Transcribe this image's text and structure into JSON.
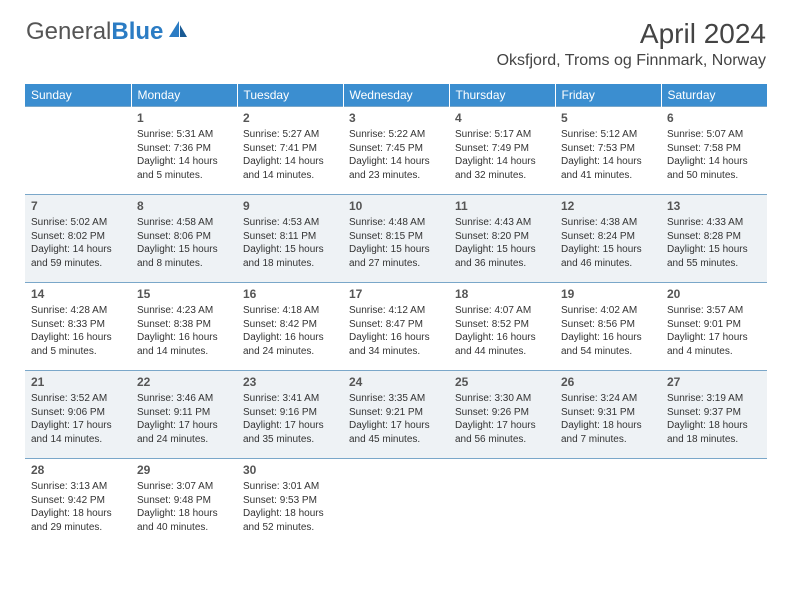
{
  "logo": {
    "word1": "General",
    "word2": "Blue"
  },
  "title": "April 2024",
  "location": "Oksfjord, Troms og Finnmark, Norway",
  "colors": {
    "header_bg": "#3b8ed0",
    "header_text": "#ffffff",
    "border": "#7aa7c9",
    "alt_row_bg": "#eef2f5",
    "text": "#333333",
    "logo_gray": "#555555",
    "logo_blue": "#2b7cc4"
  },
  "days_of_week": [
    "Sunday",
    "Monday",
    "Tuesday",
    "Wednesday",
    "Thursday",
    "Friday",
    "Saturday"
  ],
  "weeks": [
    {
      "alt": false,
      "cells": [
        null,
        {
          "n": "1",
          "sr": "Sunrise: 5:31 AM",
          "ss": "Sunset: 7:36 PM",
          "d1": "Daylight: 14 hours",
          "d2": "and 5 minutes."
        },
        {
          "n": "2",
          "sr": "Sunrise: 5:27 AM",
          "ss": "Sunset: 7:41 PM",
          "d1": "Daylight: 14 hours",
          "d2": "and 14 minutes."
        },
        {
          "n": "3",
          "sr": "Sunrise: 5:22 AM",
          "ss": "Sunset: 7:45 PM",
          "d1": "Daylight: 14 hours",
          "d2": "and 23 minutes."
        },
        {
          "n": "4",
          "sr": "Sunrise: 5:17 AM",
          "ss": "Sunset: 7:49 PM",
          "d1": "Daylight: 14 hours",
          "d2": "and 32 minutes."
        },
        {
          "n": "5",
          "sr": "Sunrise: 5:12 AM",
          "ss": "Sunset: 7:53 PM",
          "d1": "Daylight: 14 hours",
          "d2": "and 41 minutes."
        },
        {
          "n": "6",
          "sr": "Sunrise: 5:07 AM",
          "ss": "Sunset: 7:58 PM",
          "d1": "Daylight: 14 hours",
          "d2": "and 50 minutes."
        }
      ]
    },
    {
      "alt": true,
      "cells": [
        {
          "n": "7",
          "sr": "Sunrise: 5:02 AM",
          "ss": "Sunset: 8:02 PM",
          "d1": "Daylight: 14 hours",
          "d2": "and 59 minutes."
        },
        {
          "n": "8",
          "sr": "Sunrise: 4:58 AM",
          "ss": "Sunset: 8:06 PM",
          "d1": "Daylight: 15 hours",
          "d2": "and 8 minutes."
        },
        {
          "n": "9",
          "sr": "Sunrise: 4:53 AM",
          "ss": "Sunset: 8:11 PM",
          "d1": "Daylight: 15 hours",
          "d2": "and 18 minutes."
        },
        {
          "n": "10",
          "sr": "Sunrise: 4:48 AM",
          "ss": "Sunset: 8:15 PM",
          "d1": "Daylight: 15 hours",
          "d2": "and 27 minutes."
        },
        {
          "n": "11",
          "sr": "Sunrise: 4:43 AM",
          "ss": "Sunset: 8:20 PM",
          "d1": "Daylight: 15 hours",
          "d2": "and 36 minutes."
        },
        {
          "n": "12",
          "sr": "Sunrise: 4:38 AM",
          "ss": "Sunset: 8:24 PM",
          "d1": "Daylight: 15 hours",
          "d2": "and 46 minutes."
        },
        {
          "n": "13",
          "sr": "Sunrise: 4:33 AM",
          "ss": "Sunset: 8:28 PM",
          "d1": "Daylight: 15 hours",
          "d2": "and 55 minutes."
        }
      ]
    },
    {
      "alt": false,
      "cells": [
        {
          "n": "14",
          "sr": "Sunrise: 4:28 AM",
          "ss": "Sunset: 8:33 PM",
          "d1": "Daylight: 16 hours",
          "d2": "and 5 minutes."
        },
        {
          "n": "15",
          "sr": "Sunrise: 4:23 AM",
          "ss": "Sunset: 8:38 PM",
          "d1": "Daylight: 16 hours",
          "d2": "and 14 minutes."
        },
        {
          "n": "16",
          "sr": "Sunrise: 4:18 AM",
          "ss": "Sunset: 8:42 PM",
          "d1": "Daylight: 16 hours",
          "d2": "and 24 minutes."
        },
        {
          "n": "17",
          "sr": "Sunrise: 4:12 AM",
          "ss": "Sunset: 8:47 PM",
          "d1": "Daylight: 16 hours",
          "d2": "and 34 minutes."
        },
        {
          "n": "18",
          "sr": "Sunrise: 4:07 AM",
          "ss": "Sunset: 8:52 PM",
          "d1": "Daylight: 16 hours",
          "d2": "and 44 minutes."
        },
        {
          "n": "19",
          "sr": "Sunrise: 4:02 AM",
          "ss": "Sunset: 8:56 PM",
          "d1": "Daylight: 16 hours",
          "d2": "and 54 minutes."
        },
        {
          "n": "20",
          "sr": "Sunrise: 3:57 AM",
          "ss": "Sunset: 9:01 PM",
          "d1": "Daylight: 17 hours",
          "d2": "and 4 minutes."
        }
      ]
    },
    {
      "alt": true,
      "cells": [
        {
          "n": "21",
          "sr": "Sunrise: 3:52 AM",
          "ss": "Sunset: 9:06 PM",
          "d1": "Daylight: 17 hours",
          "d2": "and 14 minutes."
        },
        {
          "n": "22",
          "sr": "Sunrise: 3:46 AM",
          "ss": "Sunset: 9:11 PM",
          "d1": "Daylight: 17 hours",
          "d2": "and 24 minutes."
        },
        {
          "n": "23",
          "sr": "Sunrise: 3:41 AM",
          "ss": "Sunset: 9:16 PM",
          "d1": "Daylight: 17 hours",
          "d2": "and 35 minutes."
        },
        {
          "n": "24",
          "sr": "Sunrise: 3:35 AM",
          "ss": "Sunset: 9:21 PM",
          "d1": "Daylight: 17 hours",
          "d2": "and 45 minutes."
        },
        {
          "n": "25",
          "sr": "Sunrise: 3:30 AM",
          "ss": "Sunset: 9:26 PM",
          "d1": "Daylight: 17 hours",
          "d2": "and 56 minutes."
        },
        {
          "n": "26",
          "sr": "Sunrise: 3:24 AM",
          "ss": "Sunset: 9:31 PM",
          "d1": "Daylight: 18 hours",
          "d2": "and 7 minutes."
        },
        {
          "n": "27",
          "sr": "Sunrise: 3:19 AM",
          "ss": "Sunset: 9:37 PM",
          "d1": "Daylight: 18 hours",
          "d2": "and 18 minutes."
        }
      ]
    },
    {
      "alt": false,
      "cells": [
        {
          "n": "28",
          "sr": "Sunrise: 3:13 AM",
          "ss": "Sunset: 9:42 PM",
          "d1": "Daylight: 18 hours",
          "d2": "and 29 minutes."
        },
        {
          "n": "29",
          "sr": "Sunrise: 3:07 AM",
          "ss": "Sunset: 9:48 PM",
          "d1": "Daylight: 18 hours",
          "d2": "and 40 minutes."
        },
        {
          "n": "30",
          "sr": "Sunrise: 3:01 AM",
          "ss": "Sunset: 9:53 PM",
          "d1": "Daylight: 18 hours",
          "d2": "and 52 minutes."
        },
        null,
        null,
        null,
        null
      ]
    }
  ]
}
